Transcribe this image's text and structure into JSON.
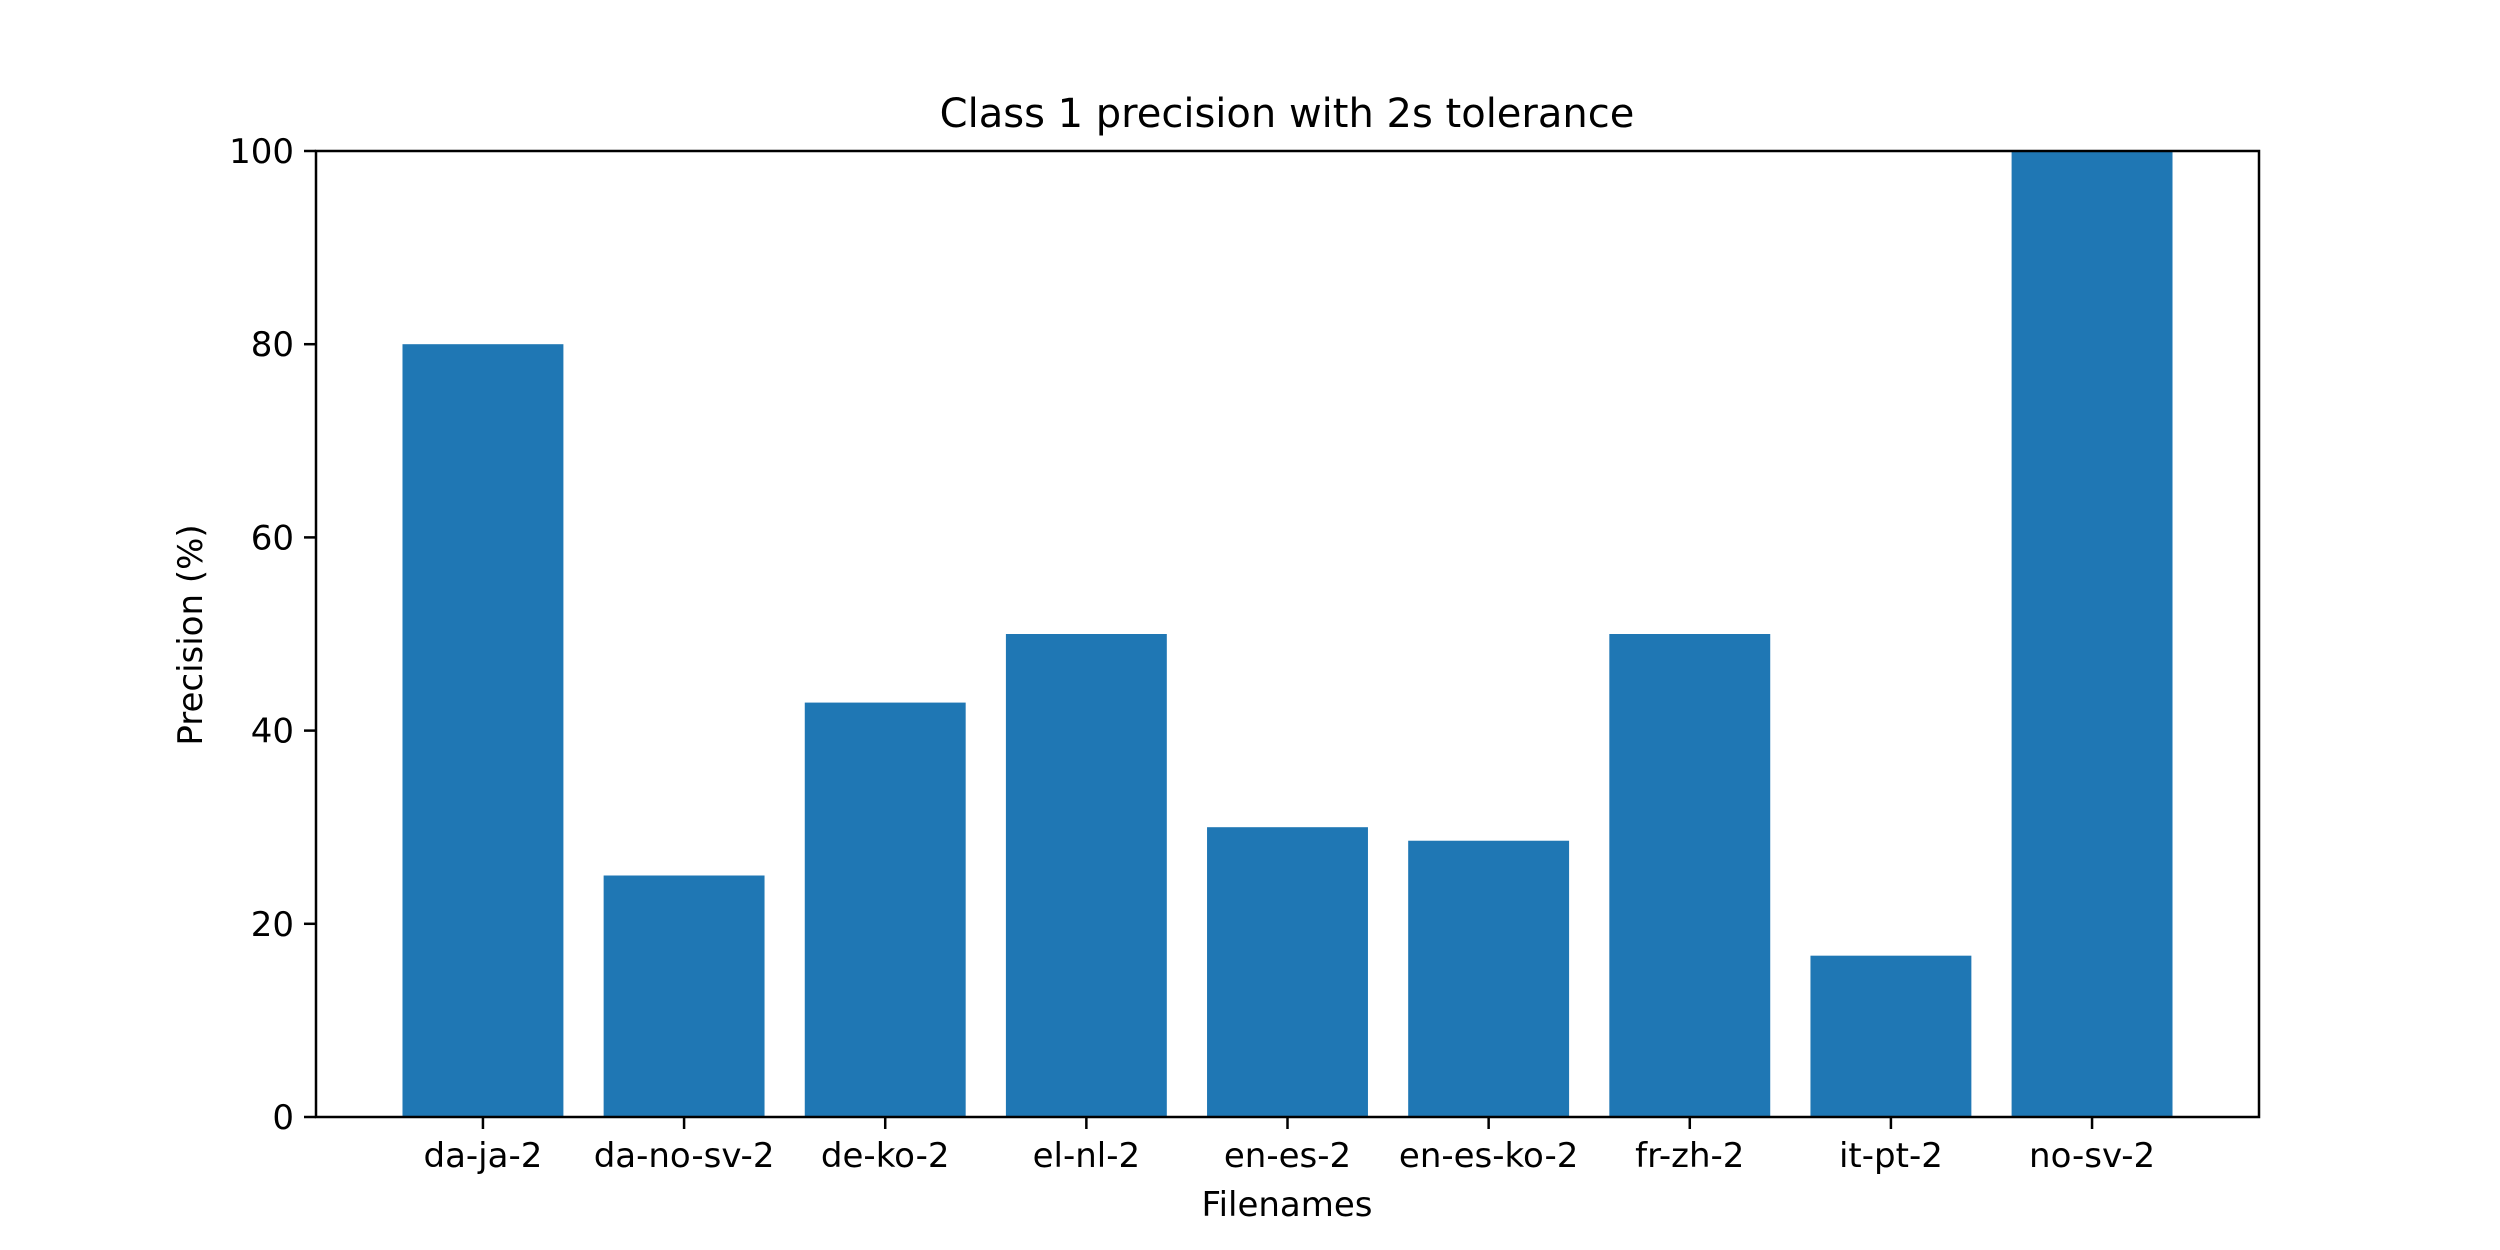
{
  "chart_data": {
    "type": "bar",
    "title": "Class 1 precision with 2s tolerance",
    "xlabel": "Filenames",
    "ylabel": "Precision (%)",
    "categories": [
      "da-ja-2",
      "da-no-sv-2",
      "de-ko-2",
      "el-nl-2",
      "en-es-2",
      "en-es-ko-2",
      "fr-zh-2",
      "it-pt-2",
      "no-sv-2"
    ],
    "values": [
      80,
      25,
      42.9,
      50,
      30,
      28.6,
      50,
      16.7,
      100
    ],
    "ylim": [
      0,
      100
    ],
    "yticks": [
      0,
      20,
      40,
      60,
      80,
      100
    ],
    "grid": false,
    "bar_color": "#1f77b4"
  }
}
